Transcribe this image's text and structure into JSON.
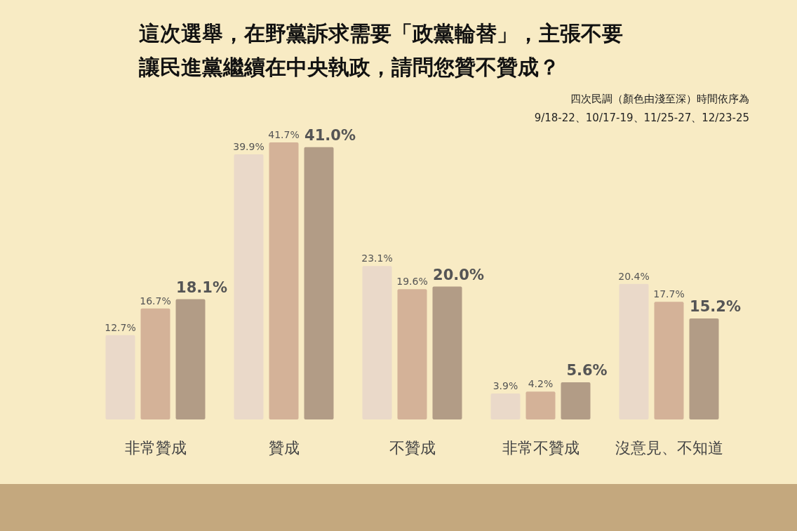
{
  "chart_data": {
    "type": "bar",
    "title": "這次選舉，在野黨訴求需要「政黨輪替」，主張不要讓民進黨繼續在中央執政，請問您贊不贊成？",
    "subtitle": "四次民調（顏色由淺至深）時間依序為\n9/18-22、10/17-19、11/25-27、12/23-25",
    "categories": [
      "非常贊成",
      "贊成",
      "不贊成",
      "非常不贊成",
      "沒意見、不知道"
    ],
    "series": [
      {
        "color": "#ead9c9",
        "values": [
          12.7,
          39.9,
          23.1,
          3.9,
          20.4
        ],
        "value_labels": [
          "12.7%",
          "39.9%",
          "23.1%",
          "3.9%",
          "20.4%"
        ]
      },
      {
        "color": "#d4b298",
        "values": [
          16.7,
          41.7,
          19.6,
          4.2,
          17.7
        ],
        "value_labels": [
          "16.7%",
          "41.7%",
          "19.6%",
          "4.2%",
          "17.7%"
        ]
      },
      {
        "color": "#b29c86",
        "values": [
          18.1,
          41.0,
          20.0,
          5.6,
          15.2
        ],
        "value_labels": [
          "18.1%",
          "41.0%",
          "20.0%",
          "5.6%",
          "15.2%"
        ]
      }
    ],
    "tick_labels": "x"
  }
}
